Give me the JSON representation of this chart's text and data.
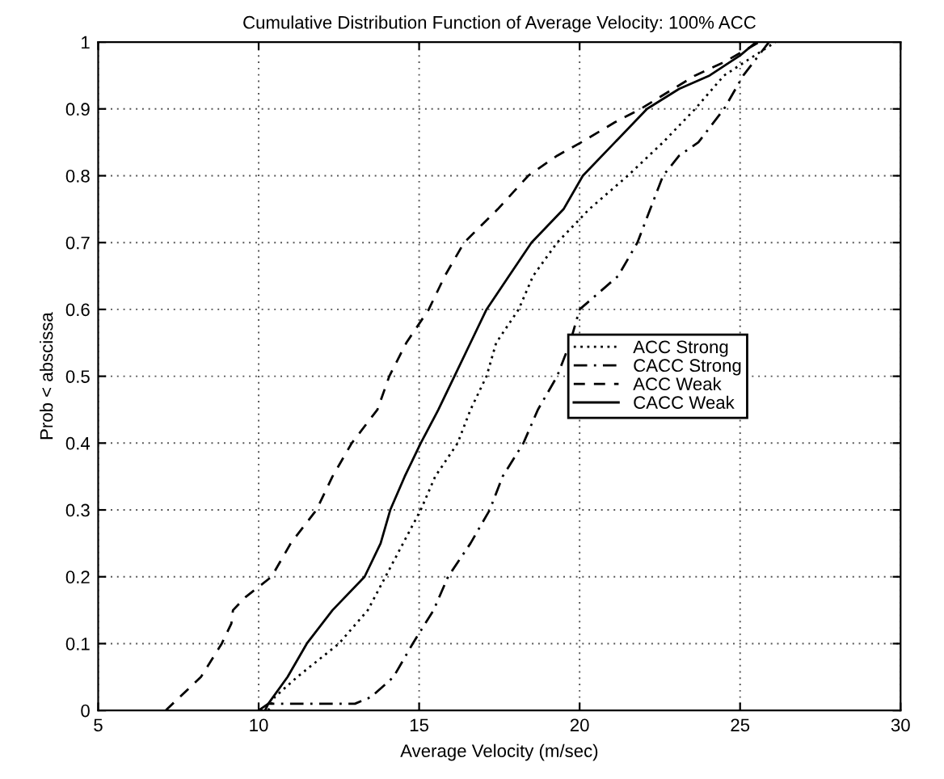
{
  "chart_data": {
    "type": "line",
    "title": "Cumulative Distribution Function of Average Velocity: 100% ACC",
    "xlabel": "Average Velocity (m/sec)",
    "ylabel": "Prob < abscissa",
    "xlim": [
      5,
      30
    ],
    "xticks": [
      5,
      10,
      15,
      20,
      25,
      30
    ],
    "ylim": [
      0,
      1
    ],
    "yticks": [
      0,
      0.1,
      0.2,
      0.3,
      0.4,
      0.5,
      0.6,
      0.7,
      0.8,
      0.9,
      1
    ],
    "grid": true,
    "legend": "right",
    "series": [
      {
        "name": "ACC Strong",
        "color": "#000000",
        "line_style": "dotted",
        "x": [
          10.3,
          10.5,
          11.2,
          12.5,
          13.4,
          13.95,
          14.5,
          15.05,
          15.5,
          16.2,
          16.6,
          17.1,
          17.4,
          18.1,
          18.55,
          19.3,
          20.3,
          21.5,
          22.6,
          23.6,
          24.5,
          26.1
        ],
        "values": [
          0,
          0.02,
          0.05,
          0.1,
          0.15,
          0.2,
          0.25,
          0.3,
          0.35,
          0.4,
          0.45,
          0.5,
          0.55,
          0.6,
          0.65,
          0.7,
          0.75,
          0.8,
          0.85,
          0.9,
          0.95,
          1
        ]
      },
      {
        "name": "CACC Strong",
        "color": "#000000",
        "line_style": "dashdot",
        "x": [
          10.2,
          10.3,
          13.0,
          13.5,
          14.2,
          14.8,
          15.45,
          15.9,
          16.6,
          17.2,
          17.6,
          18.25,
          18.7,
          19.3,
          19.7,
          20.0,
          21.2,
          21.8,
          22.2,
          22.6,
          23.1,
          23.7,
          24.5,
          25.1,
          25.9
        ],
        "values": [
          0,
          0.01,
          0.01,
          0.02,
          0.05,
          0.1,
          0.15,
          0.2,
          0.25,
          0.3,
          0.35,
          0.4,
          0.45,
          0.5,
          0.55,
          0.6,
          0.65,
          0.7,
          0.75,
          0.8,
          0.83,
          0.85,
          0.9,
          0.95,
          1
        ]
      },
      {
        "name": "ACC Weak",
        "color": "#000000",
        "line_style": "dashed",
        "x": [
          7.1,
          8.2,
          8.85,
          9.15,
          9.2,
          9.6,
          10.4,
          11.0,
          11.8,
          12.3,
          12.9,
          13.7,
          14.07,
          14.6,
          15.3,
          15.8,
          16.4,
          17.45,
          18.4,
          19.3,
          20.05,
          21.1,
          21.9,
          23.6,
          24.5,
          25.6
        ],
        "values": [
          0,
          0.05,
          0.1,
          0.13,
          0.15,
          0.17,
          0.2,
          0.25,
          0.3,
          0.35,
          0.4,
          0.45,
          0.5,
          0.55,
          0.6,
          0.65,
          0.7,
          0.75,
          0.8,
          0.83,
          0.85,
          0.88,
          0.9,
          0.95,
          0.97,
          1
        ]
      },
      {
        "name": "CACC Weak",
        "color": "#000000",
        "line_style": "solid",
        "x": [
          10.0,
          10.3,
          10.9,
          11.5,
          12.3,
          13.3,
          13.8,
          14.1,
          14.55,
          15.05,
          15.6,
          16.1,
          16.6,
          17.1,
          17.8,
          18.5,
          19.5,
          20.1,
          21.1,
          22.1,
          23.1,
          24.05,
          25.0,
          25.5
        ],
        "values": [
          0,
          0.01,
          0.05,
          0.1,
          0.15,
          0.2,
          0.25,
          0.3,
          0.35,
          0.4,
          0.45,
          0.5,
          0.55,
          0.6,
          0.65,
          0.7,
          0.75,
          0.8,
          0.85,
          0.9,
          0.93,
          0.95,
          0.98,
          1
        ]
      }
    ]
  }
}
